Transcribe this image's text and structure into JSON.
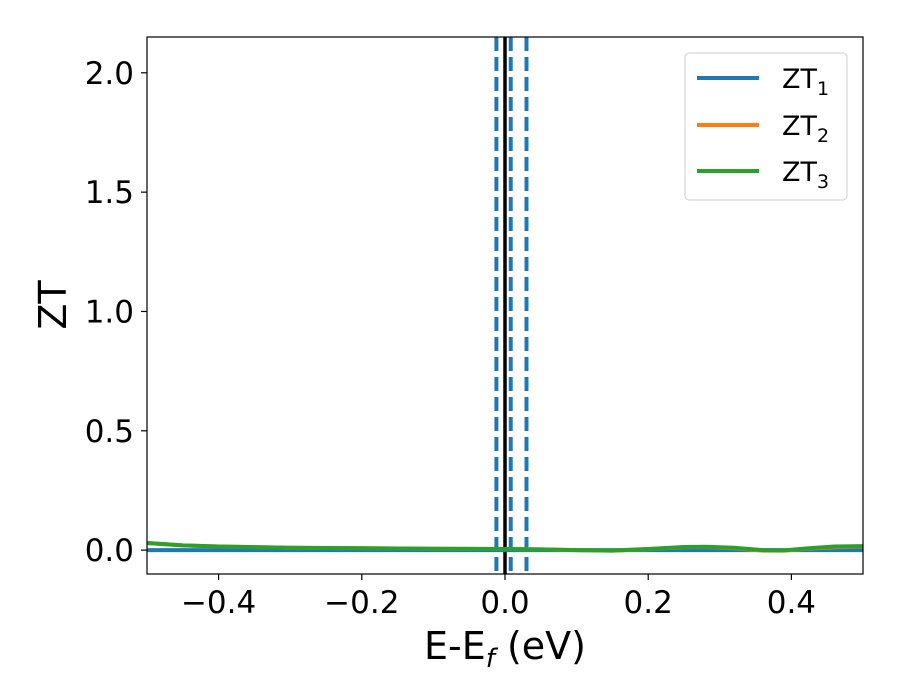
{
  "chart_data": {
    "type": "line",
    "xlabel_main": "E-E",
    "xlabel_sub": "f",
    "xlabel_unit": " (eV)",
    "ylabel": "ZT",
    "xlim": [
      -0.5,
      0.5
    ],
    "ylim": [
      -0.1,
      2.15
    ],
    "xticks": [
      -0.4,
      -0.2,
      0.0,
      0.2,
      0.4
    ],
    "xtick_labels": [
      "−0.4",
      "−0.2",
      "0.0",
      "0.2",
      "0.4"
    ],
    "yticks": [
      0.0,
      0.5,
      1.0,
      1.5,
      2.0
    ],
    "ytick_labels": [
      "0.0",
      "0.5",
      "1.0",
      "1.5",
      "2.0"
    ],
    "grid": false,
    "legend_position": "top-right",
    "vertical_lines": [
      {
        "x": 0.0,
        "style": "solid",
        "color": "#000000"
      },
      {
        "x": -0.012,
        "style": "dashed",
        "color": "#1f77b4"
      },
      {
        "x": 0.008,
        "style": "dashed",
        "color": "#1f77b4"
      },
      {
        "x": 0.03,
        "style": "dashed",
        "color": "#1f77b4"
      }
    ],
    "series": [
      {
        "name": "ZT",
        "name_sub": "1",
        "color": "#1f77b4",
        "x": [
          -0.5,
          -0.4,
          -0.3,
          -0.2,
          -0.1,
          0.0,
          0.1,
          0.2,
          0.3,
          0.4,
          0.5
        ],
        "y": [
          0.0,
          0.0,
          0.0,
          0.0,
          0.0,
          0.0,
          0.0,
          0.0,
          0.0,
          0.0,
          0.0
        ]
      },
      {
        "name": "ZT",
        "name_sub": "2",
        "color": "#ff7f0e",
        "x": [
          -0.5,
          -0.45,
          -0.4,
          -0.3,
          -0.2,
          -0.1,
          0.0,
          0.05,
          0.1,
          0.15,
          0.2,
          0.25,
          0.28,
          0.32,
          0.36,
          0.39,
          0.42,
          0.46,
          0.5
        ],
        "y": [
          0.03,
          0.02,
          0.015,
          0.01,
          0.008,
          0.006,
          0.005,
          0.003,
          0.0,
          -0.002,
          0.004,
          0.012,
          0.013,
          0.008,
          -0.002,
          -0.002,
          0.005,
          0.012,
          0.015
        ]
      },
      {
        "name": "ZT",
        "name_sub": "3",
        "color": "#2ca02c",
        "x": [
          -0.5,
          -0.45,
          -0.4,
          -0.3,
          -0.2,
          -0.1,
          0.0,
          0.05,
          0.1,
          0.15,
          0.2,
          0.25,
          0.28,
          0.32,
          0.36,
          0.39,
          0.42,
          0.46,
          0.5
        ],
        "y": [
          0.03,
          0.02,
          0.015,
          0.01,
          0.008,
          0.006,
          0.005,
          0.003,
          0.0,
          -0.002,
          0.005,
          0.013,
          0.014,
          0.01,
          0.0,
          -0.001,
          0.007,
          0.015,
          0.017
        ]
      }
    ]
  }
}
